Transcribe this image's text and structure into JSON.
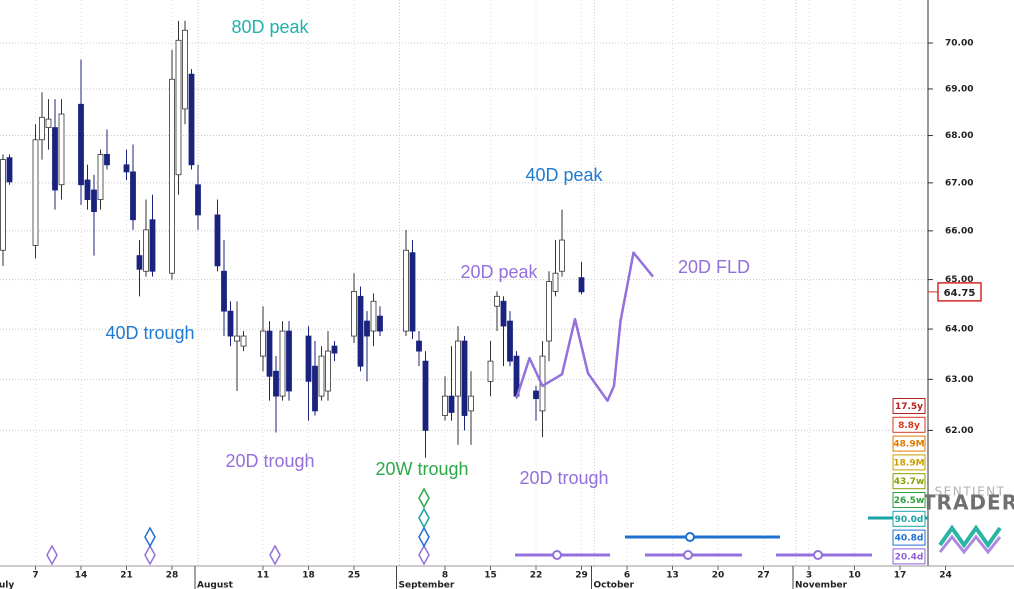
{
  "chart_data": {
    "type": "candlestick",
    "log_scale": true,
    "grid": true,
    "up_color": "#ffffff",
    "down_color": "#1a237e",
    "ylim": [
      59.44,
      70.95
    ],
    "yticks": [
      {
        "value": 62,
        "label": "62.00"
      },
      {
        "value": 63,
        "label": "63.00"
      },
      {
        "value": 64,
        "label": "64.00"
      },
      {
        "value": 65,
        "label": "65.00"
      },
      {
        "value": 66,
        "label": "66.00"
      },
      {
        "value": 67,
        "label": "67.00"
      },
      {
        "value": 68,
        "label": "68.00"
      },
      {
        "value": 69,
        "label": "69.00"
      },
      {
        "value": 70,
        "label": "70.00"
      }
    ],
    "xticks": [
      {
        "value": "07-07",
        "label": "7"
      },
      {
        "value": "07-14",
        "label": "14"
      },
      {
        "value": "07-21",
        "label": "21"
      },
      {
        "value": "07-28",
        "label": "28"
      },
      {
        "value": "08-11",
        "label": "11"
      },
      {
        "value": "08-18",
        "label": "18"
      },
      {
        "value": "08-25",
        "label": "25"
      },
      {
        "value": "09-08",
        "label": "8"
      },
      {
        "value": "09-15",
        "label": "15"
      },
      {
        "value": "09-22",
        "label": "22"
      },
      {
        "value": "09-29",
        "label": "29"
      },
      {
        "value": "10-06",
        "label": "6"
      },
      {
        "value": "10-13",
        "label": "13"
      },
      {
        "value": "10-20",
        "label": "20"
      },
      {
        "value": "10-27",
        "label": "27"
      },
      {
        "value": "11-03",
        "label": "3"
      },
      {
        "value": "11-10",
        "label": "10"
      },
      {
        "value": "11-17",
        "label": "17"
      },
      {
        "value": "11-24",
        "label": "24"
      }
    ],
    "month_ticks": [
      {
        "value": "07-01",
        "label": "July"
      },
      {
        "value": "08-01",
        "label": "August"
      },
      {
        "value": "09-01",
        "label": "September"
      },
      {
        "value": "10-01",
        "label": "October"
      },
      {
        "value": "11-01",
        "label": "November"
      }
    ],
    "x": [
      "07-02",
      "07-03",
      "07-07",
      "07-08",
      "07-09",
      "07-10",
      "07-11",
      "07-14",
      "07-15",
      "07-16",
      "07-17",
      "07-18",
      "07-21",
      "07-22",
      "07-23",
      "07-24",
      "07-25",
      "07-28",
      "07-29",
      "07-30",
      "07-31",
      "08-01",
      "08-04",
      "08-05",
      "08-06",
      "08-07",
      "08-08",
      "08-11",
      "08-12",
      "08-13",
      "08-14",
      "08-15",
      "08-18",
      "08-19",
      "08-20",
      "08-21",
      "08-22",
      "08-25",
      "08-26",
      "08-27",
      "08-28",
      "08-29",
      "09-02",
      "09-03",
      "09-04",
      "09-05",
      "09-08",
      "09-09",
      "09-10",
      "09-11",
      "09-12",
      "09-15",
      "09-16",
      "09-17",
      "09-18",
      "09-19",
      "09-22",
      "09-23",
      "09-24",
      "09-25",
      "09-26",
      "09-29"
    ],
    "open": [
      65.6,
      67.53,
      65.7,
      67.91,
      68.17,
      68.17,
      66.96,
      68.67,
      67.06,
      66.85,
      66.65,
      67.6,
      67.38,
      67.23,
      65.49,
      65.17,
      66.23,
      65.13,
      67.17,
      68.57,
      69.32,
      66.96,
      66.33,
      65.17,
      64.36,
      63.76,
      63.66,
      63.46,
      63.96,
      63.16,
      62.67,
      63.96,
      63.86,
      63.26,
      62.67,
      62.77,
      63.66,
      63.86,
      64.66,
      64.16,
      63.96,
      64.26,
      63.96,
      65.55,
      63.76,
      63.36,
      62.29,
      62.67,
      62.67,
      63.76,
      62.38,
      62.96,
      64.46,
      64.56,
      64.16,
      63.46,
      62.77,
      62.38,
      63.76,
      64.76,
      65.17,
      65.04
    ],
    "high": [
      67.6,
      67.6,
      68.24,
      68.93,
      68.78,
      68.78,
      68.78,
      69.64,
      67.38,
      67.17,
      67.7,
      68.13,
      67.7,
      67.81,
      65.81,
      66.65,
      66.75,
      69.85,
      70.49,
      70.49,
      69.43,
      67.38,
      66.65,
      65.81,
      64.56,
      64.56,
      63.96,
      64.46,
      64.16,
      63.46,
      64.16,
      64.16,
      64.06,
      63.76,
      63.66,
      63.96,
      63.76,
      65.13,
      64.86,
      64.36,
      64.72,
      64.46,
      66.02,
      65.81,
      63.96,
      63.56,
      63.06,
      63.66,
      64.06,
      63.86,
      63.16,
      63.76,
      64.76,
      64.66,
      64.36,
      63.56,
      62.87,
      63.76,
      65.17,
      65.81,
      66.44,
      65.36
    ],
    "low": [
      65.28,
      66.96,
      65.43,
      67.49,
      67.7,
      66.44,
      66.65,
      66.54,
      66.44,
      65.49,
      66.44,
      67.28,
      67.06,
      66.02,
      64.66,
      65.06,
      65.06,
      65.0,
      66.75,
      68.24,
      67.28,
      66.02,
      65.17,
      63.86,
      63.66,
      62.77,
      63.56,
      63.16,
      62.58,
      61.96,
      62.58,
      62.58,
      62.19,
      62.29,
      62.58,
      62.58,
      63.36,
      63.72,
      63.16,
      62.96,
      63.66,
      63.86,
      63.86,
      63.8,
      63.26,
      61.47,
      62.19,
      62.19,
      61.72,
      62.0,
      61.72,
      62.67,
      63.96,
      63.26,
      63.26,
      62.62,
      62.19,
      61.87,
      63.36,
      64.66,
      65.06,
      64.7
    ],
    "close": [
      67.49,
      67.02,
      67.91,
      68.39,
      68.35,
      66.85,
      68.46,
      66.96,
      66.65,
      66.4,
      67.6,
      67.38,
      67.23,
      66.23,
      65.21,
      66.02,
      65.17,
      69.21,
      70.06,
      70.28,
      67.38,
      66.33,
      65.28,
      64.36,
      63.86,
      63.86,
      63.86,
      63.96,
      63.06,
      62.67,
      63.96,
      62.77,
      62.96,
      62.38,
      63.46,
      63.56,
      63.52,
      64.76,
      63.26,
      63.86,
      64.56,
      63.96,
      65.6,
      63.96,
      63.56,
      62.0,
      62.67,
      62.35,
      63.76,
      62.29,
      62.67,
      63.36,
      64.66,
      64.06,
      63.36,
      62.67,
      62.62,
      63.46,
      64.96,
      65.13,
      65.81,
      64.75
    ],
    "series": [
      {
        "name": "20D FLD",
        "color": "#9370db",
        "x": [
          "09-19",
          "09-21",
          "09-23",
          "09-26",
          "09-28",
          "09-30",
          "10-03",
          "10-04",
          "10-05",
          "10-07",
          "10-10"
        ],
        "values": [
          62.63,
          63.42,
          62.87,
          63.1,
          64.2,
          63.12,
          62.58,
          62.87,
          64.16,
          65.55,
          65.06
        ]
      }
    ],
    "last_price": 64.75,
    "last_price_color": "#d62828",
    "annotations": [
      {
        "text": "80D peak",
        "color": "#20b2aa"
      },
      {
        "text": "40D peak",
        "color": "#1e7bd2"
      },
      {
        "text": "20D peak",
        "color": "#9370db"
      },
      {
        "text": "40D trough",
        "color": "#1e7bd2"
      },
      {
        "text": "20D trough",
        "color": "#9370db"
      },
      {
        "text": "20W trough",
        "color": "#2aa84a"
      },
      {
        "text": "20D trough",
        "color": "#9370db"
      }
    ],
    "cycle_lengths": [
      {
        "label": "17.5y",
        "color": "#b22222"
      },
      {
        "label": "8.8y",
        "color": "#d9381e"
      },
      {
        "label": "48.9M",
        "color": "#e07b00"
      },
      {
        "label": "18.9M",
        "color": "#c9a100"
      },
      {
        "label": "43.7w",
        "color": "#8aa000"
      },
      {
        "label": "26.5w",
        "color": "#2e9e3e"
      },
      {
        "label": "90.0d",
        "color": "#1aa3a3"
      },
      {
        "label": "40.8d",
        "color": "#1f6fd0"
      },
      {
        "label": "20.4d",
        "color": "#9061d6"
      }
    ],
    "logo": [
      "SENTIENT",
      "TRADER"
    ]
  }
}
